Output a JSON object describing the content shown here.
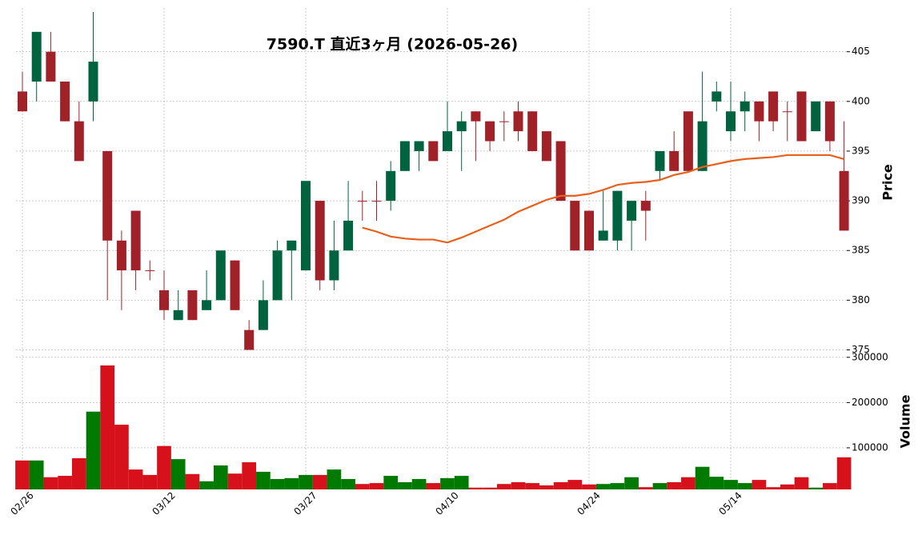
{
  "chart_data": [
    {
      "type": "candlestick",
      "title": "7590.T  直近3ヶ月  (2026-05-26)",
      "ylabel": "Price",
      "categories": [
        "02/26",
        null,
        null,
        null,
        null,
        null,
        null,
        null,
        null,
        null,
        "03/12",
        null,
        null,
        null,
        null,
        null,
        null,
        null,
        null,
        null,
        "03/27",
        null,
        null,
        null,
        null,
        null,
        null,
        null,
        null,
        null,
        "04/10",
        null,
        null,
        null,
        null,
        null,
        null,
        null,
        null,
        null,
        "04/24",
        null,
        null,
        null,
        null,
        null,
        null,
        null,
        null,
        null,
        "05/14",
        null,
        null,
        null,
        null,
        null,
        null,
        null,
        null
      ],
      "open": [
        401,
        402,
        405,
        402,
        398,
        400,
        395,
        386,
        389,
        383,
        381,
        378,
        381,
        379,
        380,
        384,
        377,
        377,
        380,
        385,
        383,
        390,
        382,
        385,
        390,
        390,
        390,
        393,
        395,
        396,
        395,
        397,
        399,
        398,
        398,
        399,
        399,
        397,
        396,
        390,
        389,
        386,
        386,
        388,
        390,
        393,
        395,
        399,
        393,
        400,
        397,
        399,
        400,
        401,
        399,
        401,
        397,
        400,
        393
      ],
      "high": [
        403,
        407,
        407,
        402,
        400,
        409,
        395,
        387,
        389,
        384,
        383,
        381,
        381,
        383,
        385,
        384,
        378,
        382,
        386,
        386,
        392,
        390,
        388,
        392,
        391,
        392,
        394,
        396,
        396,
        396,
        400,
        399,
        399,
        398,
        399,
        400,
        399,
        397,
        396,
        390,
        389,
        391,
        391,
        390,
        391,
        395,
        397,
        399,
        403,
        402,
        402,
        401,
        400,
        401,
        400,
        401,
        400,
        400,
        398
      ],
      "low": [
        399,
        400,
        402,
        398,
        394,
        398,
        380,
        379,
        381,
        382,
        378,
        378,
        378,
        379,
        380,
        379,
        375,
        377,
        380,
        380,
        383,
        381,
        381,
        385,
        388,
        388,
        389,
        393,
        393,
        394,
        395,
        393,
        394,
        395,
        396,
        396,
        395,
        394,
        390,
        385,
        385,
        386,
        385,
        385,
        386,
        392,
        393,
        393,
        393,
        399,
        396,
        397,
        396,
        397,
        396,
        396,
        397,
        395,
        387
      ],
      "close": [
        399,
        407,
        402,
        398,
        394,
        404,
        386,
        383,
        383,
        383,
        379,
        379,
        378,
        380,
        385,
        379,
        375,
        380,
        385,
        386,
        392,
        382,
        385,
        388,
        390,
        390,
        393,
        396,
        396,
        394,
        397,
        398,
        398,
        396,
        398,
        397,
        395,
        394,
        390,
        385,
        385,
        387,
        391,
        390,
        389,
        395,
        393,
        393,
        398,
        401,
        399,
        400,
        398,
        398,
        399,
        396,
        400,
        396,
        387
      ],
      "ma": {
        "color": "#e8601c",
        "values": [
          null,
          null,
          null,
          null,
          null,
          null,
          null,
          null,
          null,
          null,
          null,
          null,
          null,
          null,
          null,
          null,
          null,
          null,
          null,
          null,
          null,
          null,
          null,
          null,
          387.3,
          386.9,
          386.4,
          386.2,
          386.1,
          386.1,
          385.8,
          386.3,
          386.9,
          387.5,
          388.1,
          388.9,
          389.5,
          390.1,
          390.5,
          390.5,
          390.7,
          391.1,
          391.6,
          391.8,
          391.9,
          392.1,
          392.6,
          392.9,
          393.4,
          393.7,
          394.0,
          394.2,
          394.3,
          394.4,
          394.6,
          394.6,
          394.6,
          394.6,
          394.2
        ]
      },
      "up_color": "#006340",
      "down_color": "#a02128",
      "ylim": [
        374.8,
        409.4
      ],
      "yticks": [
        375,
        380,
        385,
        390,
        395,
        400,
        405
      ],
      "grid": true
    },
    {
      "type": "bar",
      "ylabel": "Volume",
      "values": [
        72000,
        72000,
        35000,
        38000,
        77000,
        180000,
        282000,
        151000,
        52000,
        40000,
        104000,
        75000,
        42000,
        26000,
        61000,
        43000,
        68000,
        47000,
        31000,
        33000,
        40000,
        40000,
        52000,
        31000,
        20000,
        22000,
        38000,
        24000,
        31000,
        22000,
        33000,
        38000,
        12000,
        12000,
        20000,
        24000,
        22000,
        17000,
        24000,
        29000,
        19000,
        20000,
        22000,
        35000,
        13000,
        22000,
        24000,
        35000,
        58000,
        36000,
        29000,
        22000,
        29000,
        13000,
        19000,
        35000,
        12000,
        22000,
        79000
      ],
      "up_color": "#007a00",
      "down_color": "#d6111c",
      "ylim": [
        8000,
        305000
      ],
      "yticks": [
        100000,
        200000,
        300000
      ],
      "grid": true
    }
  ]
}
